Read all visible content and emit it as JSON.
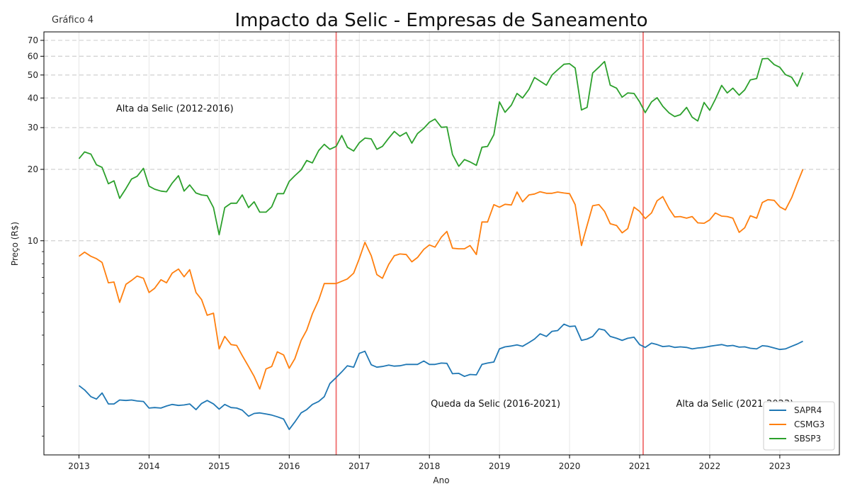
{
  "chart_data": {
    "type": "line",
    "corner_label": "Gráfico 4",
    "title": "Impacto da Selic - Empresas de Saneamento",
    "xlabel": "Ano",
    "ylabel": "Preço (R$)",
    "y_scale": "log",
    "ylim": [
      1.25,
      76
    ],
    "xlim": [
      2012.5,
      2023.85
    ],
    "x_ticks": [
      2013,
      2014,
      2015,
      2016,
      2017,
      2018,
      2019,
      2020,
      2021,
      2022,
      2023
    ],
    "x_tick_labels": [
      "2013",
      "2014",
      "2015",
      "2016",
      "2017",
      "2018",
      "2019",
      "2020",
      "2021",
      "2022",
      "2023"
    ],
    "y_ticks": [
      10,
      20,
      30,
      40,
      50,
      60,
      70
    ],
    "y_tick_labels": [
      "10",
      "20",
      "30",
      "40",
      "50",
      "60",
      "70"
    ],
    "y_minor_ticks": [
      1.5,
      2,
      3,
      4,
      5,
      6,
      7,
      8,
      9
    ],
    "grid": "dashed horizontal at labeled y ticks, light vertical at years",
    "legend_position": "bottom-right",
    "vertical_lines": [
      {
        "x": 2016.67,
        "color": "#f07070"
      },
      {
        "x": 2021.05,
        "color": "#f07070"
      }
    ],
    "annotations": [
      {
        "text": "Alta da Selic (2012-2016)",
        "x": 2013.53,
        "y": 36
      },
      {
        "text": "Queda da Selic (2016-2021)",
        "x": 2018.02,
        "y": 2.05
      },
      {
        "text": "Alta da Selic (2021-2023)",
        "x": 2021.52,
        "y": 2.05
      }
    ],
    "series": [
      {
        "name": "SAPR4",
        "color": "#1f77b4",
        "x": [
          2013.0,
          2013.08,
          2013.17,
          2013.25,
          2013.33,
          2013.42,
          2013.5,
          2013.58,
          2013.67,
          2013.75,
          2013.83,
          2013.92,
          2014.0,
          2014.08,
          2014.17,
          2014.25,
          2014.33,
          2014.42,
          2014.5,
          2014.58,
          2014.67,
          2014.75,
          2014.83,
          2014.92,
          2015.0,
          2015.08,
          2015.17,
          2015.25,
          2015.33,
          2015.42,
          2015.5,
          2015.58,
          2015.67,
          2015.75,
          2015.83,
          2015.92,
          2016.0,
          2016.08,
          2016.17,
          2016.25,
          2016.33,
          2016.42,
          2016.5,
          2016.58,
          2016.67,
          2016.75,
          2016.83,
          2016.92,
          2017.0,
          2017.08,
          2017.17,
          2017.25,
          2017.33,
          2017.42,
          2017.5,
          2017.58,
          2017.67,
          2017.75,
          2017.83,
          2017.92,
          2018.0,
          2018.08,
          2018.17,
          2018.25,
          2018.33,
          2018.42,
          2018.5,
          2018.58,
          2018.67,
          2018.75,
          2018.83,
          2018.92,
          2019.0,
          2019.08,
          2019.17,
          2019.25,
          2019.33,
          2019.42,
          2019.5,
          2019.58,
          2019.67,
          2019.75,
          2019.83,
          2019.92,
          2020.0,
          2020.08,
          2020.17,
          2020.25,
          2020.33,
          2020.42,
          2020.5,
          2020.58,
          2020.67,
          2020.75,
          2020.83,
          2020.92,
          2021.0,
          2021.08,
          2021.17,
          2021.25,
          2021.33,
          2021.42,
          2021.5,
          2021.58,
          2021.67,
          2021.75,
          2021.83,
          2021.92,
          2022.0,
          2022.08,
          2022.17,
          2022.25,
          2022.33,
          2022.42,
          2022.5,
          2022.58,
          2022.67,
          2022.75,
          2022.83,
          2022.92,
          2023.0,
          2023.08,
          2023.17,
          2023.25,
          2023.33
        ],
        "values": [
          2.45,
          2.35,
          2.2,
          2.15,
          2.28,
          2.05,
          2.05,
          2.13,
          2.12,
          2.13,
          2.11,
          2.1,
          1.97,
          1.98,
          1.97,
          2.01,
          2.04,
          2.02,
          2.03,
          2.05,
          1.94,
          2.06,
          2.12,
          2.05,
          1.95,
          2.04,
          1.98,
          1.97,
          1.93,
          1.82,
          1.87,
          1.88,
          1.86,
          1.84,
          1.81,
          1.77,
          1.6,
          1.72,
          1.88,
          1.94,
          2.04,
          2.1,
          2.2,
          2.5,
          2.65,
          2.8,
          2.97,
          2.93,
          3.35,
          3.42,
          3.0,
          2.93,
          2.95,
          2.99,
          2.96,
          2.97,
          3.01,
          3.01,
          3.01,
          3.11,
          3.01,
          3.01,
          3.05,
          3.04,
          2.75,
          2.76,
          2.68,
          2.73,
          2.72,
          3.01,
          3.05,
          3.08,
          3.5,
          3.57,
          3.6,
          3.64,
          3.59,
          3.72,
          3.85,
          4.05,
          3.95,
          4.15,
          4.18,
          4.45,
          4.35,
          4.37,
          3.8,
          3.85,
          3.95,
          4.25,
          4.2,
          3.95,
          3.88,
          3.8,
          3.88,
          3.92,
          3.65,
          3.55,
          3.7,
          3.65,
          3.58,
          3.6,
          3.55,
          3.57,
          3.55,
          3.5,
          3.53,
          3.55,
          3.59,
          3.62,
          3.65,
          3.6,
          3.62,
          3.56,
          3.57,
          3.52,
          3.5,
          3.61,
          3.59,
          3.53,
          3.48,
          3.5,
          3.59,
          3.67,
          3.77
        ]
      },
      {
        "name": "CSMG3",
        "color": "#ff7f0e",
        "x": [
          2013.0,
          2013.08,
          2013.17,
          2013.25,
          2013.33,
          2013.42,
          2013.5,
          2013.58,
          2013.67,
          2013.75,
          2013.83,
          2013.92,
          2014.0,
          2014.08,
          2014.17,
          2014.25,
          2014.33,
          2014.42,
          2014.5,
          2014.58,
          2014.67,
          2014.75,
          2014.83,
          2014.92,
          2015.0,
          2015.08,
          2015.17,
          2015.25,
          2015.33,
          2015.42,
          2015.5,
          2015.58,
          2015.67,
          2015.75,
          2015.83,
          2015.92,
          2016.0,
          2016.08,
          2016.17,
          2016.25,
          2016.33,
          2016.42,
          2016.5,
          2016.58,
          2016.67,
          2016.75,
          2016.83,
          2016.92,
          2017.0,
          2017.08,
          2017.17,
          2017.25,
          2017.33,
          2017.42,
          2017.5,
          2017.58,
          2017.67,
          2017.75,
          2017.83,
          2017.92,
          2018.0,
          2018.08,
          2018.17,
          2018.25,
          2018.33,
          2018.42,
          2018.5,
          2018.58,
          2018.67,
          2018.75,
          2018.83,
          2018.92,
          2019.0,
          2019.08,
          2019.17,
          2019.25,
          2019.33,
          2019.42,
          2019.5,
          2019.58,
          2019.67,
          2019.75,
          2019.83,
          2019.92,
          2020.0,
          2020.08,
          2020.17,
          2020.25,
          2020.33,
          2020.42,
          2020.5,
          2020.58,
          2020.67,
          2020.75,
          2020.83,
          2020.92,
          2021.0,
          2021.08,
          2021.17,
          2021.25,
          2021.33,
          2021.42,
          2021.5,
          2021.58,
          2021.67,
          2021.75,
          2021.83,
          2021.92,
          2022.0,
          2022.08,
          2022.17,
          2022.25,
          2022.33,
          2022.42,
          2022.5,
          2022.58,
          2022.67,
          2022.75,
          2022.83,
          2022.92,
          2023.0,
          2023.08,
          2023.17,
          2023.25,
          2023.33
        ],
        "values": [
          8.6,
          8.95,
          8.6,
          8.4,
          8.1,
          6.65,
          6.7,
          5.5,
          6.55,
          6.8,
          7.1,
          6.95,
          6.05,
          6.3,
          6.85,
          6.65,
          7.3,
          7.6,
          7.05,
          7.55,
          6.05,
          5.65,
          4.85,
          4.95,
          3.5,
          3.95,
          3.65,
          3.62,
          3.28,
          2.95,
          2.68,
          2.37,
          2.88,
          2.95,
          3.4,
          3.3,
          2.9,
          3.18,
          3.8,
          4.2,
          4.92,
          5.62,
          6.6,
          6.6,
          6.6,
          6.75,
          6.9,
          7.3,
          8.4,
          9.85,
          8.65,
          7.2,
          6.95,
          7.95,
          8.65,
          8.8,
          8.75,
          8.15,
          8.5,
          9.2,
          9.6,
          9.4,
          10.35,
          10.95,
          9.3,
          9.25,
          9.25,
          9.55,
          8.75,
          12.0,
          12.0,
          14.2,
          13.85,
          14.25,
          14.15,
          16.05,
          14.6,
          15.6,
          15.75,
          16.1,
          15.85,
          15.85,
          16.05,
          15.9,
          15.8,
          14.2,
          9.55,
          11.6,
          14.05,
          14.2,
          13.3,
          11.8,
          11.6,
          10.8,
          11.25,
          13.85,
          13.3,
          12.4,
          13.1,
          14.75,
          15.35,
          13.65,
          12.6,
          12.65,
          12.45,
          12.65,
          11.9,
          11.85,
          12.25,
          13.1,
          12.7,
          12.65,
          12.45,
          10.85,
          11.35,
          12.75,
          12.45,
          14.5,
          14.9,
          14.8,
          13.9,
          13.5,
          15.2,
          17.5,
          20.0
        ]
      },
      {
        "name": "SBSP3",
        "color": "#2ca02c",
        "x": [
          2013.0,
          2013.08,
          2013.17,
          2013.25,
          2013.33,
          2013.42,
          2013.5,
          2013.58,
          2013.67,
          2013.75,
          2013.83,
          2013.92,
          2014.0,
          2014.08,
          2014.17,
          2014.25,
          2014.33,
          2014.42,
          2014.5,
          2014.58,
          2014.67,
          2014.75,
          2014.83,
          2014.92,
          2015.0,
          2015.08,
          2015.17,
          2015.25,
          2015.33,
          2015.42,
          2015.5,
          2015.58,
          2015.67,
          2015.75,
          2015.83,
          2015.92,
          2016.0,
          2016.08,
          2016.17,
          2016.25,
          2016.33,
          2016.42,
          2016.5,
          2016.58,
          2016.67,
          2016.75,
          2016.83,
          2016.92,
          2017.0,
          2017.08,
          2017.17,
          2017.25,
          2017.33,
          2017.42,
          2017.5,
          2017.58,
          2017.67,
          2017.75,
          2017.83,
          2017.92,
          2018.0,
          2018.08,
          2018.17,
          2018.25,
          2018.33,
          2018.42,
          2018.5,
          2018.58,
          2018.67,
          2018.75,
          2018.83,
          2018.92,
          2019.0,
          2019.08,
          2019.17,
          2019.25,
          2019.33,
          2019.42,
          2019.5,
          2019.58,
          2019.67,
          2019.75,
          2019.83,
          2019.92,
          2020.0,
          2020.08,
          2020.17,
          2020.25,
          2020.33,
          2020.42,
          2020.5,
          2020.58,
          2020.67,
          2020.75,
          2020.83,
          2020.92,
          2021.0,
          2021.08,
          2021.17,
          2021.25,
          2021.33,
          2021.42,
          2021.5,
          2021.58,
          2021.67,
          2021.75,
          2021.83,
          2021.92,
          2022.0,
          2022.08,
          2022.17,
          2022.25,
          2022.33,
          2022.42,
          2022.5,
          2022.58,
          2022.67,
          2022.75,
          2022.83,
          2022.92,
          2023.0,
          2023.08,
          2023.17,
          2023.25,
          2023.33
        ],
        "values": [
          22.2,
          23.7,
          23.2,
          20.9,
          20.4,
          17.4,
          17.9,
          15.1,
          16.6,
          18.2,
          18.7,
          20.2,
          17.0,
          16.5,
          16.2,
          16.1,
          17.5,
          18.8,
          16.2,
          17.2,
          15.9,
          15.6,
          15.5,
          13.8,
          10.6,
          13.8,
          14.4,
          14.4,
          15.6,
          13.8,
          14.6,
          13.2,
          13.2,
          13.9,
          15.8,
          15.8,
          17.8,
          18.8,
          19.9,
          21.8,
          21.3,
          24.0,
          25.5,
          24.3,
          25.0,
          27.8,
          24.8,
          23.9,
          25.9,
          27.1,
          26.9,
          24.3,
          25.0,
          27.1,
          28.9,
          27.6,
          28.6,
          25.8,
          28.3,
          29.8,
          31.6,
          32.6,
          30.1,
          30.2,
          23.1,
          20.6,
          22.0,
          21.5,
          20.8,
          24.8,
          25.0,
          28.0,
          38.5,
          34.8,
          37.3,
          41.8,
          40.0,
          43.5,
          48.8,
          47.1,
          45.3,
          50.0,
          52.6,
          55.5,
          55.8,
          53.5,
          35.6,
          36.5,
          51.0,
          54.0,
          57.0,
          45.3,
          44.0,
          40.3,
          42.0,
          41.8,
          38.5,
          34.7,
          38.5,
          40.1,
          36.9,
          34.6,
          33.4,
          34.0,
          36.5,
          33.2,
          32.0,
          38.3,
          35.5,
          39.5,
          45.2,
          42.0,
          44.0,
          41.1,
          43.3,
          47.7,
          48.3,
          58.5,
          58.7,
          55.3,
          53.9,
          50.2,
          48.9,
          44.8,
          51.2
        ]
      }
    ]
  }
}
